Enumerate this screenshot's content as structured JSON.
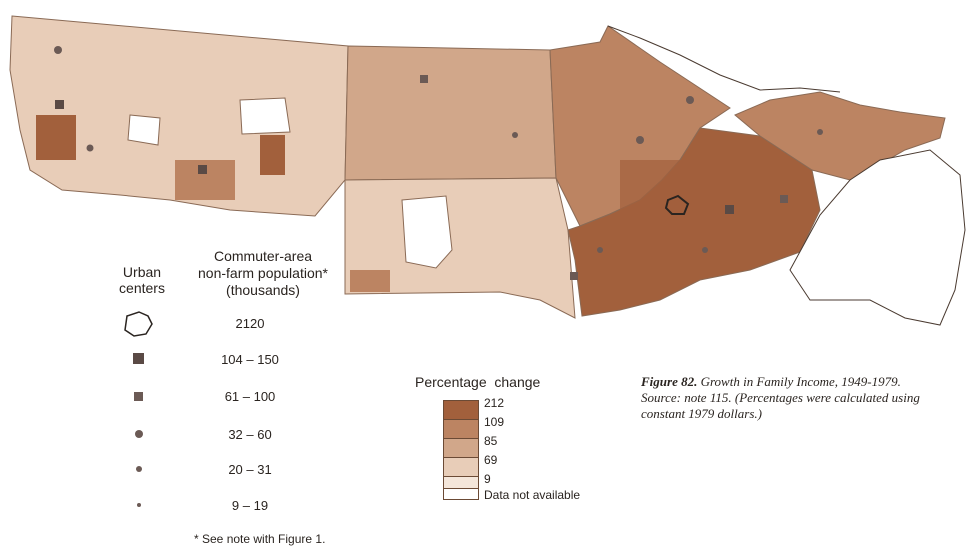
{
  "legend_urban": {
    "title": "Urban\ncenters",
    "subtitle": "Commuter-area\nnon-farm population*\n(thousands)",
    "items": [
      {
        "label": "2120",
        "symbol": "outline-icon"
      },
      {
        "label": "104 – 150",
        "symbol": "square-large-icon"
      },
      {
        "label": "61 – 100",
        "symbol": "square-small-icon"
      },
      {
        "label": "32 – 60",
        "symbol": "dot-large-icon"
      },
      {
        "label": "20 – 31",
        "symbol": "dot-medium-icon"
      },
      {
        "label": "9 – 19",
        "symbol": "dot-small-icon"
      }
    ],
    "footnote": "* See note with Figure 1."
  },
  "legend_change": {
    "title": "Percentage  change",
    "breaks": [
      "212",
      "109",
      "85",
      "69",
      "9"
    ],
    "na_label": "Data not available",
    "colors": [
      "#a2603c",
      "#bc8462",
      "#d1a78a",
      "#e8cdb8",
      "#f4e6da",
      "#ffffff"
    ]
  },
  "caption": {
    "figure": "Figure 82.",
    "text": "Growth in Family Income, 1949-1979. Source: note 115. (Percentages were calculated using constant 1979 dollars.)"
  }
}
